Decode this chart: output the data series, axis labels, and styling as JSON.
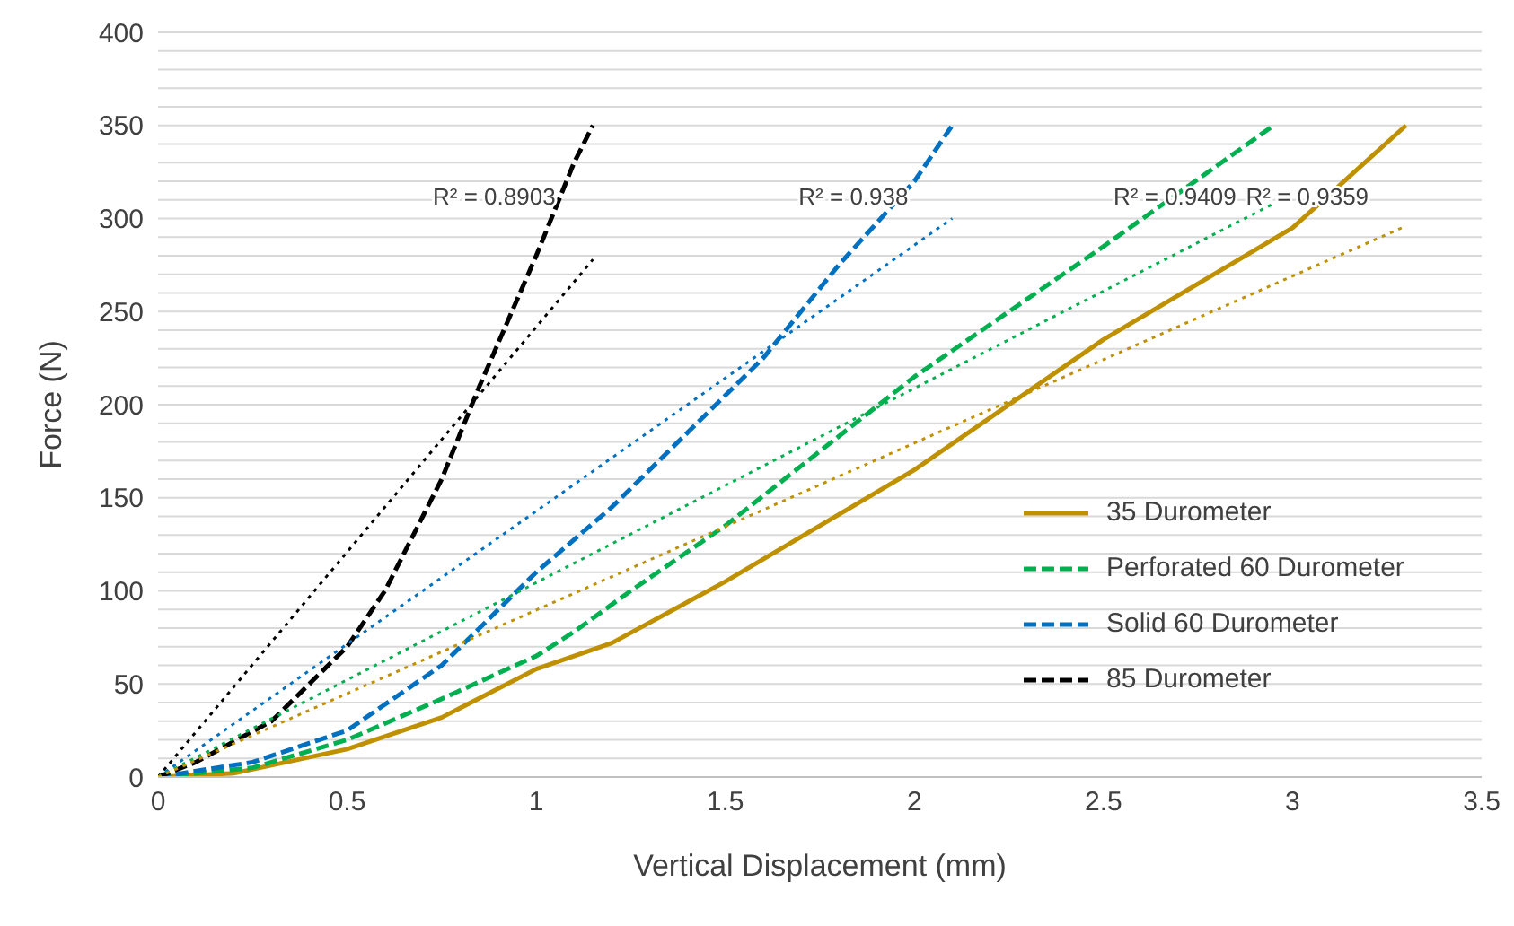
{
  "chart_data": {
    "type": "line",
    "xlabel": "Vertical Displacement (mm)",
    "ylabel": "Force (N)",
    "xlim": [
      0,
      3.5
    ],
    "xticks": [
      0,
      0.5,
      1,
      1.5,
      2,
      2.5,
      3,
      3.5
    ],
    "ylim": [
      0,
      400
    ],
    "yticks": [
      0,
      {
        "value": 10,
        "label": null
      },
      {
        "value": 20,
        "label": null
      },
      {
        "value": 30,
        "label": null
      },
      {
        "value": 40,
        "label": null
      },
      50,
      {
        "value": 60,
        "label": null
      },
      {
        "value": 70,
        "label": null
      },
      {
        "value": 80,
        "label": null
      },
      {
        "value": 90,
        "label": null
      },
      100,
      {
        "value": 110,
        "label": null
      },
      {
        "value": 120,
        "label": null
      },
      {
        "value": 130,
        "label": null
      },
      {
        "value": 140,
        "label": null
      },
      150,
      {
        "value": 160,
        "label": null
      },
      {
        "value": 170,
        "label": null
      },
      {
        "value": 180,
        "label": null
      },
      {
        "value": 190,
        "label": null
      },
      200,
      {
        "value": 210,
        "label": null
      },
      {
        "value": 220,
        "label": null
      },
      {
        "value": 230,
        "label": null
      },
      {
        "value": 240,
        "label": null
      },
      250,
      {
        "value": 260,
        "label": null
      },
      {
        "value": 270,
        "label": null
      },
      {
        "value": 280,
        "label": null
      },
      {
        "value": 290,
        "label": null
      },
      300,
      {
        "value": 310,
        "label": null
      },
      {
        "value": 320,
        "label": null
      },
      {
        "value": 330,
        "label": null
      },
      {
        "value": 340,
        "label": null
      },
      350,
      {
        "value": 360,
        "label": null
      },
      {
        "value": 370,
        "label": null
      },
      {
        "value": 380,
        "label": null
      },
      {
        "value": 390,
        "label": null
      },
      400
    ],
    "grid": "y",
    "legend": "bottom right",
    "marker": "none",
    "series": [
      {
        "name": "35 Durometer",
        "color": "#bf9000",
        "line_style": "solid",
        "x": [
          0,
          0.2,
          0.5,
          0.75,
          1,
          1.2,
          1.5,
          2,
          2.5,
          3,
          3.3
        ],
        "values": [
          0,
          2,
          15,
          32,
          58,
          72,
          105,
          165,
          235,
          295,
          350
        ]
      },
      {
        "name": "Perforated 60 Durometer",
        "color": "#00b050",
        "line_style": "dashed",
        "x": [
          0,
          0.25,
          0.5,
          0.75,
          1,
          1.1,
          1.25,
          1.5,
          1.75,
          2,
          2.5,
          2.95
        ],
        "values": [
          0,
          5,
          20,
          42,
          65,
          78,
          100,
          135,
          175,
          215,
          285,
          350
        ]
      },
      {
        "name": "Solid 60 Durometer",
        "color": "#0070c0",
        "line_style": "dashed",
        "x": [
          0,
          0.25,
          0.5,
          0.75,
          1,
          1.2,
          1.4,
          1.6,
          1.8,
          2,
          2.1
        ],
        "values": [
          0,
          8,
          25,
          60,
          110,
          145,
          185,
          225,
          275,
          320,
          350
        ]
      },
      {
        "name": "85 Durometer",
        "color": "#000000",
        "line_style": "dashed",
        "x": [
          0,
          0.1,
          0.3,
          0.5,
          0.6,
          0.75,
          0.85,
          1,
          1.1,
          1.15
        ],
        "values": [
          0,
          8,
          30,
          70,
          100,
          160,
          210,
          280,
          330,
          350
        ]
      },
      {
        "color": "#000000",
        "line_style": "dotted",
        "x": [
          0,
          1.15
        ],
        "values": [
          0,
          278
        ]
      },
      {
        "color": "#0070c0",
        "line_style": "dotted",
        "x": [
          0,
          2.1
        ],
        "values": [
          0,
          300
        ]
      },
      {
        "color": "#00b050",
        "line_style": "dotted",
        "x": [
          0,
          2.95
        ],
        "values": [
          0,
          308
        ]
      },
      {
        "color": "#bf9000",
        "line_style": "dotted",
        "x": [
          0,
          3.3
        ],
        "values": [
          0,
          296
        ]
      }
    ],
    "annotations": [
      "R² = 0.8903",
      "R² = 0.938",
      "R² = 0.9409",
      "R² = 0.9359"
    ]
  }
}
